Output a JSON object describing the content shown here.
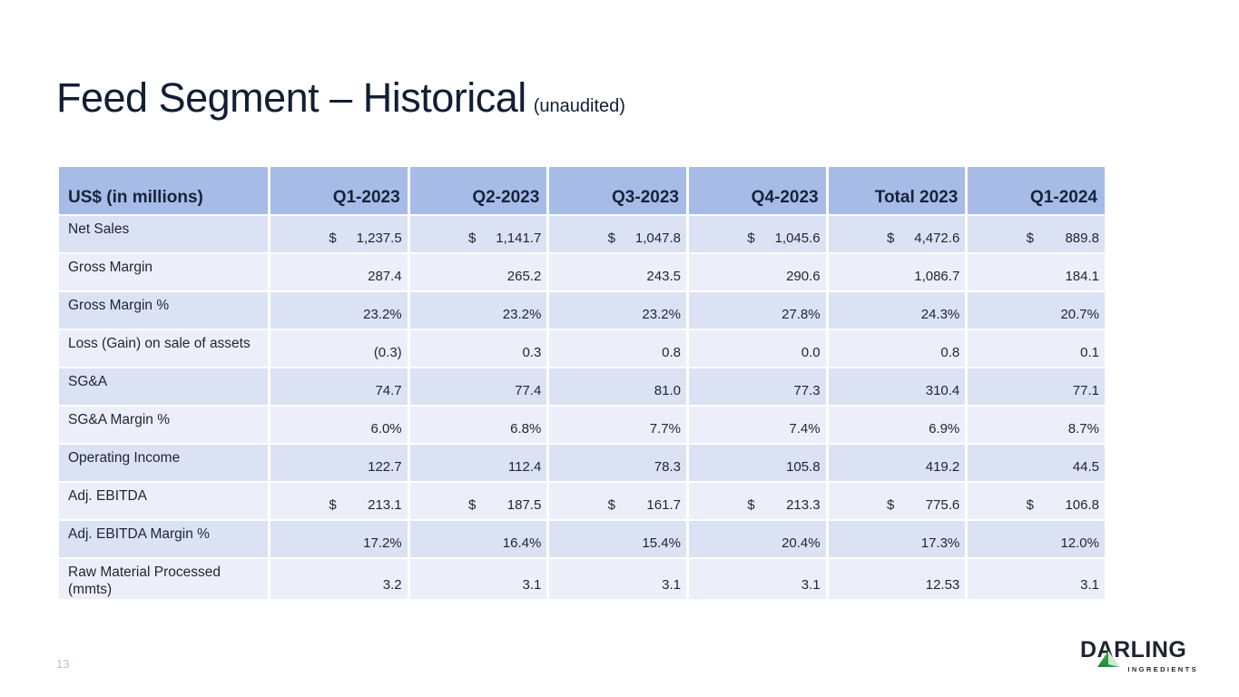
{
  "slide": {
    "title": "Feed Segment – Historical",
    "title_suffix": "(unaudited)",
    "page_number": "13"
  },
  "table": {
    "currency_symbol": "$",
    "header": [
      "US$ (in millions)",
      "Q1-2023",
      "Q2-2023",
      "Q3-2023",
      "Q4-2023",
      "Total 2023",
      "Q1-2024"
    ],
    "rows": [
      {
        "label": "Net Sales",
        "dollar": true,
        "values": [
          "1,237.5",
          "1,141.7",
          "1,047.8",
          "1,045.6",
          "4,472.6",
          "889.8"
        ]
      },
      {
        "label": "Gross Margin",
        "dollar": false,
        "values": [
          "287.4",
          "265.2",
          "243.5",
          "290.6",
          "1,086.7",
          "184.1"
        ]
      },
      {
        "label": "Gross Margin %",
        "dollar": false,
        "values": [
          "23.2%",
          "23.2%",
          "23.2%",
          "27.8%",
          "24.3%",
          "20.7%"
        ]
      },
      {
        "label": "Loss (Gain) on sale of assets",
        "dollar": false,
        "values": [
          "(0.3)",
          "0.3",
          "0.8",
          "0.0",
          "0.8",
          "0.1"
        ]
      },
      {
        "label": "SG&A",
        "dollar": false,
        "values": [
          "74.7",
          "77.4",
          "81.0",
          "77.3",
          "310.4",
          "77.1"
        ]
      },
      {
        "label": "SG&A Margin %",
        "dollar": false,
        "values": [
          "6.0%",
          "6.8%",
          "7.7%",
          "7.4%",
          "6.9%",
          "8.7%"
        ]
      },
      {
        "label": "Operating Income",
        "dollar": false,
        "values": [
          "122.7",
          "112.4",
          "78.3",
          "105.8",
          "419.2",
          "44.5"
        ]
      },
      {
        "label": "Adj. EBITDA",
        "dollar": true,
        "values": [
          "213.1",
          "187.5",
          "161.7",
          "213.3",
          "775.6",
          "106.8"
        ]
      },
      {
        "label": "Adj. EBITDA Margin %",
        "dollar": false,
        "values": [
          "17.2%",
          "16.4%",
          "15.4%",
          "20.4%",
          "17.3%",
          "12.0%"
        ]
      },
      {
        "label": "Raw Material Processed (mmts)",
        "dollar": false,
        "values": [
          "3.2",
          "3.1",
          "3.1",
          "3.1",
          "12.53",
          "3.1"
        ]
      }
    ]
  },
  "logo": {
    "brand": "DARLING",
    "sub": "INGREDIENTS"
  },
  "colors": {
    "header_bg": "#A6BCE7",
    "row_band_dark": "#DBE2F4",
    "row_band_light": "#ECEFF9",
    "title_text": "#111E33",
    "logo_green_dark": "#1D7A34",
    "logo_green_light": "#9FD8A8"
  }
}
